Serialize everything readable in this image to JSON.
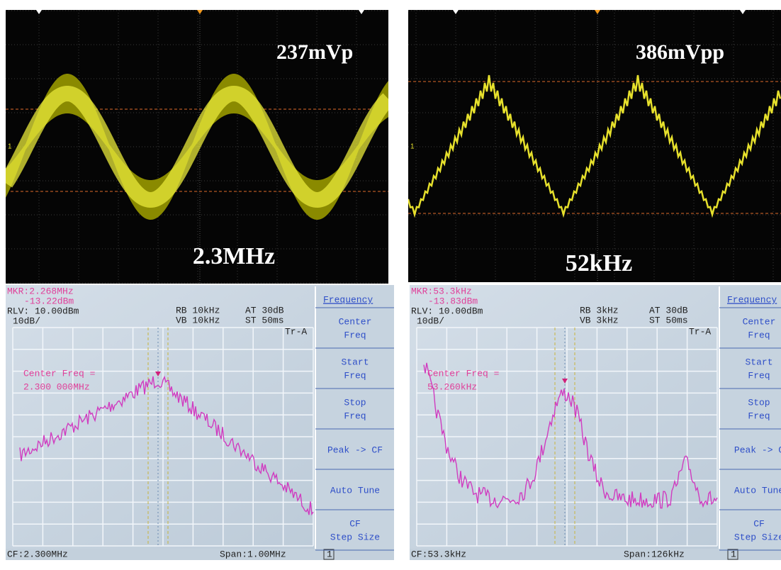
{
  "oscilloscopes": [
    {
      "amplitude": "237mVp",
      "frequency": "2.3MHz",
      "channel": "1"
    },
    {
      "amplitude": "386mVpp",
      "frequency": "52kHz",
      "channel": "1"
    }
  ],
  "spectrum_analyzers": [
    {
      "marker": "MKR:2.268MHz",
      "marker_level": "-13.22dBm",
      "reference_level": "RLV: 10.00dBm",
      "scale": "10dB/",
      "rbw": "RB 10kHz",
      "vbw": "VB 10kHz",
      "attenuation": "AT 30dB",
      "sweep_time": "ST 50ms",
      "trace": "Tr-A",
      "annotation": [
        "Center Freq =",
        "2.300 000MHz"
      ],
      "center_freq": "CF:2.300MHz",
      "span": "Span:1.00MHz",
      "page": "1",
      "menu": {
        "title": "Frequency",
        "items": [
          [
            "Center",
            "Freq"
          ],
          [
            "Start",
            "Freq"
          ],
          [
            "Stop",
            "Freq"
          ],
          [
            "Peak -> CF"
          ],
          [
            "Auto Tune"
          ],
          [
            "CF",
            "Step Size"
          ]
        ]
      }
    },
    {
      "marker": "MKR:53.3kHz",
      "marker_level": "-13.83dBm",
      "reference_level": "RLV: 10.00dBm",
      "scale": "10dB/",
      "rbw": "RB 3kHz",
      "vbw": "VB 3kHz",
      "attenuation": "AT 30dB",
      "sweep_time": "ST 50ms",
      "trace": "Tr-A",
      "annotation": [
        "Center Freq =",
        "53.260kHz"
      ],
      "center_freq": "CF:53.3kHz",
      "span": "Span:126kHz",
      "page": "1",
      "menu": {
        "title": "Frequency",
        "items": [
          [
            "Center",
            "Freq"
          ],
          [
            "Start",
            "Freq"
          ],
          [
            "Stop",
            "Freq"
          ],
          [
            "Peak -> C"
          ],
          [
            "Auto Tune"
          ],
          [
            "CF",
            "Step Size"
          ]
        ]
      }
    }
  ]
}
